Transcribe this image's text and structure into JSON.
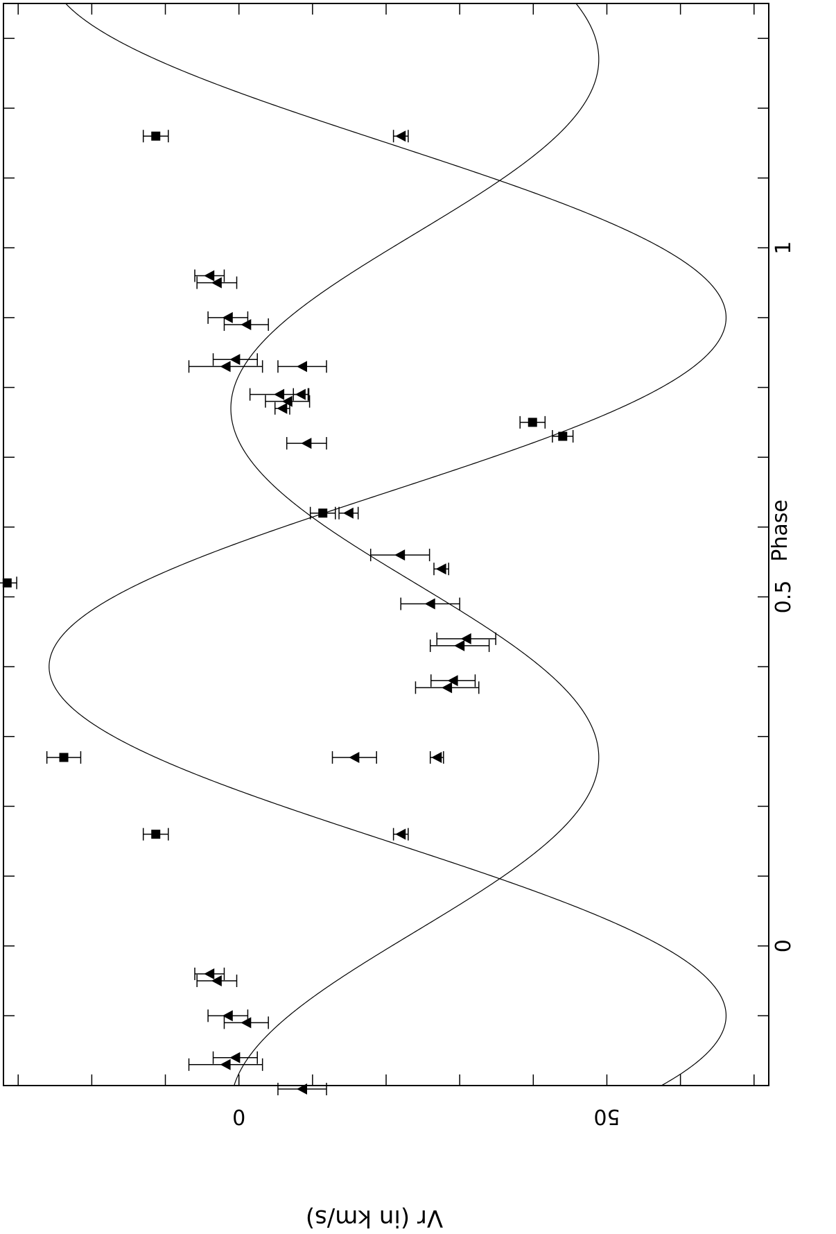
{
  "chart_data": {
    "type": "scatter",
    "orientation": "rotated-90-clockwise",
    "title": "",
    "xlabel": "Phase",
    "ylabel": "Vr (in km/s)",
    "xlim": [
      -0.2,
      1.35
    ],
    "ylim": [
      -32,
      72
    ],
    "x_ticks": [
      {
        "value": 0,
        "label": "0"
      },
      {
        "value": 0.5,
        "label": "0.5"
      },
      {
        "value": 1,
        "label": "1"
      }
    ],
    "y_ticks": [
      {
        "value": 0,
        "label": "0"
      },
      {
        "value": 50,
        "label": "50"
      }
    ],
    "grid": false,
    "legend": "none",
    "series": [
      {
        "marker": "triangle",
        "points": [
          {
            "x": -0.205,
            "y": 8.6,
            "err": 3.3
          },
          {
            "x": -0.17,
            "y": -1.8,
            "err": 5.0
          },
          {
            "x": -0.16,
            "y": -0.5,
            "err": 3.0
          },
          {
            "x": -0.11,
            "y": 1.0,
            "err": 3.0
          },
          {
            "x": -0.1,
            "y": -1.5,
            "err": 2.7
          },
          {
            "x": -0.05,
            "y": -3.0,
            "err": 2.7
          },
          {
            "x": -0.04,
            "y": -4.0,
            "err": 2.0
          },
          {
            "x": 0.16,
            "y": 22.0,
            "err": 1.0
          },
          {
            "x": 0.27,
            "y": 26.9,
            "err": 0.9
          },
          {
            "x": 0.27,
            "y": 15.7,
            "err": 3.0
          },
          {
            "x": 0.37,
            "y": 28.3,
            "err": 4.3
          },
          {
            "x": 0.38,
            "y": 29.1,
            "err": 3.0
          },
          {
            "x": 0.43,
            "y": 30.0,
            "err": 4.0
          },
          {
            "x": 0.44,
            "y": 30.9,
            "err": 4.0
          },
          {
            "x": 0.49,
            "y": 26.0,
            "err": 4.0
          },
          {
            "x": 0.54,
            "y": 27.5,
            "err": 1.0
          },
          {
            "x": 0.56,
            "y": 21.9,
            "err": 4.0
          },
          {
            "x": 0.62,
            "y": 14.9,
            "err": 1.3
          },
          {
            "x": 0.72,
            "y": 9.2,
            "err": 2.7
          },
          {
            "x": 0.77,
            "y": 5.9,
            "err": 1.0
          },
          {
            "x": 0.78,
            "y": 6.6,
            "err": 3.0
          },
          {
            "x": 0.79,
            "y": 5.5,
            "err": 4.0
          },
          {
            "x": 0.79,
            "y": 8.4,
            "err": 1.0
          },
          {
            "x": 0.83,
            "y": 8.6,
            "err": 3.3
          },
          {
            "x": 0.83,
            "y": -1.8,
            "err": 5.0
          },
          {
            "x": 0.84,
            "y": -0.5,
            "err": 3.0
          },
          {
            "x": 0.89,
            "y": 1.0,
            "err": 3.0
          },
          {
            "x": 0.9,
            "y": -1.5,
            "err": 2.7
          },
          {
            "x": 0.95,
            "y": -3.0,
            "err": 2.7
          },
          {
            "x": 0.96,
            "y": -4.0,
            "err": 2.0
          },
          {
            "x": 1.16,
            "y": 22.0,
            "err": 1.0
          }
        ]
      },
      {
        "marker": "square",
        "points": [
          {
            "x": 0.16,
            "y": -11.3,
            "err": 1.7
          },
          {
            "x": 0.27,
            "y": -23.8,
            "err": 2.3
          },
          {
            "x": 0.52,
            "y": -31.5,
            "err": 1.3
          },
          {
            "x": 0.62,
            "y": 11.4,
            "err": 1.7
          },
          {
            "x": 0.73,
            "y": 44.0,
            "err": 1.4
          },
          {
            "x": 0.75,
            "y": 39.9,
            "err": 1.7
          },
          {
            "x": 1.16,
            "y": -11.3,
            "err": 1.7
          }
        ]
      }
    ],
    "fits": [
      {
        "shape": "sinusoid",
        "gamma": 23.9,
        "amplitude": 25.0,
        "phase_of_maximum": 0.27
      },
      {
        "shape": "sinusoid",
        "gamma": 20.2,
        "amplitude": 46.0,
        "phase_of_maximum": 0.9
      }
    ]
  }
}
